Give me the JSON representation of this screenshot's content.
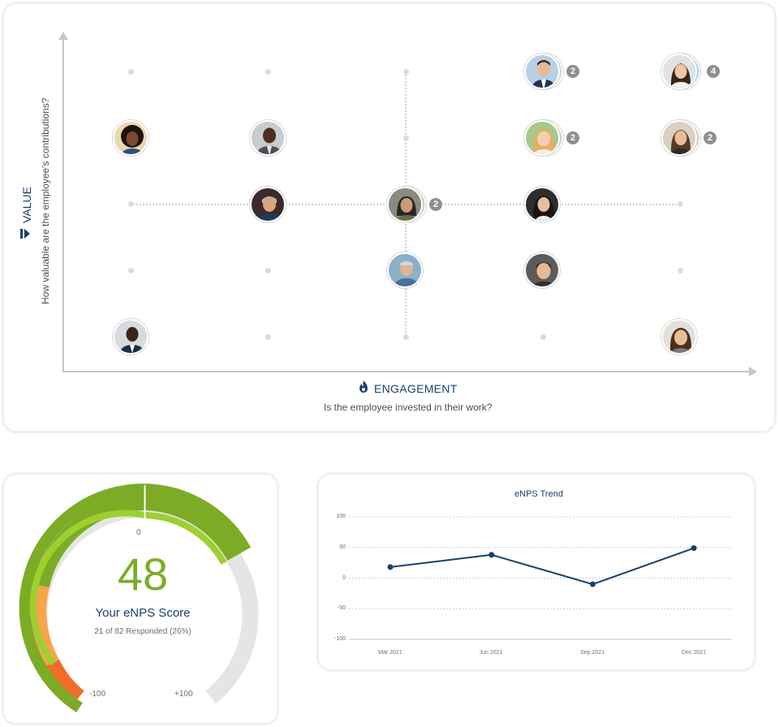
{
  "matrix": {
    "y_axis": {
      "title": "VALUE",
      "subtitle": "How valuable are the employee's contributions?",
      "icon": "value-chevron-icon"
    },
    "x_axis": {
      "title": "ENGAGEMENT",
      "subtitle": "Is the employee invested in their work?",
      "icon": "flame-icon"
    },
    "badges": {
      "row1_col4": "2",
      "row1_col5": "4",
      "row2_col4": "2",
      "row2_col5": "2",
      "row3_col3": "2"
    }
  },
  "gauge": {
    "score": "48",
    "label": "Your eNPS Score",
    "responses": "21 of 82 Responded (26%)",
    "tick_zero": "0",
    "tick_min": "-100",
    "tick_max": "+100",
    "colors": {
      "green": "#7cac26",
      "light_green": "#9dd02f",
      "orange": "#f7a54b",
      "red": "#f26b2a",
      "gray": "#e5e5e5"
    }
  },
  "trend": {
    "title": "eNPS Trend",
    "y_ticks": [
      "100",
      "50",
      "0",
      "-50",
      "-100"
    ],
    "x_ticks": [
      "Mar 2021",
      "Jun 2021",
      "Sep 2021",
      "Dec 2021"
    ]
  },
  "chart_data": {
    "type": "line",
    "title": "eNPS Trend",
    "categories": [
      "Mar 2021",
      "Jun 2021",
      "Sep 2021",
      "Dec 2021"
    ],
    "series": [
      {
        "values": [
          18,
          38,
          -10,
          49
        ]
      }
    ],
    "ylim": [
      -100,
      100
    ],
    "yticks": [
      100,
      50,
      0,
      -50,
      -100
    ],
    "grid": true,
    "line_color": "#17406d"
  }
}
